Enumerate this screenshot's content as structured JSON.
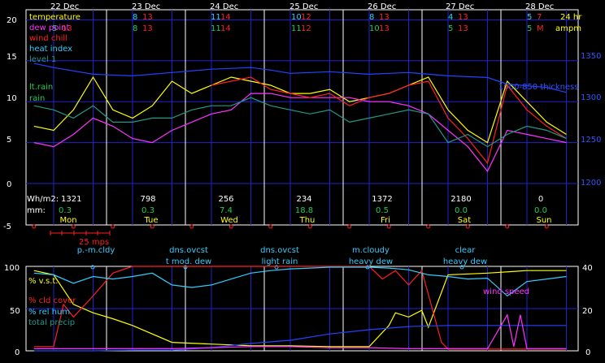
{
  "colors": {
    "background": "#000000",
    "grid": "#2222cc",
    "plot_border": "#ffffff",
    "day_divider": "#ffffff",
    "yellow": "#ffff00",
    "magenta": "#ff33ff",
    "red": "#ff2020",
    "cyan": "#33ccff",
    "green": "#22cc55",
    "teal": "#229988",
    "blue": "#2244ff",
    "tick_text": "#ffffff",
    "right_axis_text": "#3355ff"
  },
  "dates": [
    "22 Dec",
    "23 Dec",
    "24 Dec",
    "25 Dec",
    "26 Dec",
    "27 Dec",
    "28 Dec"
  ],
  "top_header": {
    "temp_row": [
      {
        "min": "",
        "max": ""
      },
      {
        "min": "8",
        "max": "13"
      },
      {
        "min": "11",
        "max": "14"
      },
      {
        "min": "10",
        "max": "12"
      },
      {
        "min": "8",
        "max": "13"
      },
      {
        "min": "4",
        "max": "13"
      },
      {
        "min": "5",
        "max": "7"
      }
    ],
    "dew_row": [
      {
        "min": "5",
        "max": "13"
      },
      {
        "min": "8",
        "max": "13"
      },
      {
        "min": "11",
        "max": "14"
      },
      {
        "min": "11",
        "max": "12"
      },
      {
        "min": "10",
        "max": "13"
      },
      {
        "min": "5",
        "max": "13"
      },
      {
        "min": "5",
        "max": "M"
      }
    ],
    "hr_label": "24 hr",
    "ampm_label": "ampm"
  },
  "top_legend": [
    "temperature",
    "dew point",
    "wind chill",
    "heat index",
    "level 1",
    "lt.rain",
    "rain"
  ],
  "thickness_label": "1000-850 thickness",
  "daily": {
    "labels": {
      "wh": "Wh/m2:",
      "mm": "mm:"
    },
    "wh": [
      "1321",
      "798",
      "256",
      "234",
      "1372",
      "2180",
      "0"
    ],
    "mm": [
      "0.3",
      "0.3",
      "7.4",
      "18.8",
      "0.5",
      "0.0",
      "0.0"
    ],
    "days": [
      "Mon",
      "Tue",
      "Wed",
      "Thu",
      "Fri",
      "Sat",
      "Sun"
    ]
  },
  "wind_scale_label": "25 mps",
  "sky_labels": [
    {
      "sky": "p.-m.cldy",
      "precip": ""
    },
    {
      "sky": "dns.ovcst",
      "precip": "t mod. dew"
    },
    {
      "sky": "dns.ovcst",
      "precip": "light rain"
    },
    {
      "sky": "m.cloudy",
      "precip": "heavy dew"
    },
    {
      "sky": "clear",
      "precip": "heavy dew"
    }
  ],
  "bottom_legend": [
    "% v.s.t.",
    "% cld cover",
    "% rel hum",
    "total precip"
  ],
  "wind_speed_label": "wind speed",
  "chart_data": [
    {
      "type": "line",
      "panel": "temperature",
      "x_unit": "hours since 22 Dec 00:00",
      "ylim": [
        -5,
        20
      ],
      "y_ticks": [
        -5,
        0,
        5,
        10,
        15,
        20
      ],
      "y2lim": [
        1150,
        1375
      ],
      "y2_ticks": [
        1200,
        1250,
        1300,
        1350
      ],
      "grid": true,
      "series": [
        {
          "name": "temperature",
          "color": "#ffff00",
          "axis": "left",
          "x": [
            -6,
            0,
            6,
            12,
            18,
            24,
            30,
            36,
            42,
            48,
            54,
            60,
            66,
            72,
            78,
            84,
            90,
            96,
            102,
            108,
            114,
            120,
            126,
            132,
            138,
            144,
            150,
            156
          ],
          "y": [
            7,
            6.5,
            9,
            13,
            9,
            8,
            9.5,
            12.5,
            11,
            12,
            13,
            12.5,
            12,
            11,
            11,
            11.5,
            10,
            10.5,
            11,
            12,
            13,
            9,
            6.5,
            5,
            12.5,
            10,
            7.5,
            6
          ]
        },
        {
          "name": "dew point",
          "color": "#ff33ff",
          "axis": "left",
          "x": [
            -6,
            0,
            6,
            12,
            18,
            24,
            30,
            36,
            42,
            48,
            54,
            60,
            66,
            72,
            78,
            84,
            90,
            96,
            102,
            108,
            114,
            120,
            126,
            132,
            138,
            144,
            150,
            156
          ],
          "y": [
            5,
            4.5,
            6,
            8,
            7,
            5.5,
            5,
            6.5,
            7.5,
            8.5,
            9,
            11,
            11,
            10.5,
            10.5,
            10.5,
            10.5,
            10,
            10,
            9.5,
            8.5,
            6.5,
            4.5,
            1.5,
            6.5,
            6,
            5.5,
            5
          ]
        },
        {
          "name": "wind chill",
          "color": "#ff2020",
          "axis": "left",
          "x": [
            48,
            54,
            60,
            66,
            72,
            78,
            84,
            90,
            96,
            102,
            108,
            114,
            120,
            126,
            132,
            138,
            144,
            150,
            156
          ],
          "y": [
            12,
            12.5,
            13,
            11.5,
            11,
            10.5,
            11,
            9.5,
            10.5,
            11,
            12,
            12.5,
            8,
            5.5,
            2.5,
            12,
            9,
            7,
            5.5
          ]
        },
        {
          "name": "level 1",
          "color": "#229988",
          "axis": "left",
          "x": [
            -6,
            0,
            6,
            12,
            18,
            24,
            30,
            36,
            42,
            48,
            54,
            60,
            66,
            72,
            78,
            84,
            90,
            96,
            102,
            108,
            114,
            120,
            126,
            132,
            138,
            144,
            150,
            156
          ],
          "y": [
            9.5,
            9,
            8,
            9.5,
            7.5,
            7.5,
            8,
            8,
            9,
            9.5,
            9.5,
            10.5,
            9.5,
            9,
            8.5,
            9,
            7.5,
            8,
            8.5,
            9,
            8.5,
            5,
            6,
            4.5,
            6,
            7,
            6.5,
            5.5
          ]
        },
        {
          "name": "1000-850 thickness",
          "color": "#2244ff",
          "axis": "right",
          "x": [
            -6,
            0,
            6,
            12,
            24,
            36,
            48,
            60,
            66,
            72,
            84,
            96,
            108,
            120,
            132,
            138,
            144,
            150,
            156
          ],
          "y": [
            1345,
            1340,
            1336,
            1332,
            1330,
            1334,
            1338,
            1340,
            1337,
            1333,
            1335,
            1332,
            1334,
            1330,
            1328,
            1320,
            1318,
            1316,
            1310
          ]
        }
      ]
    },
    {
      "type": "line",
      "panel": "cloud, humidity, precipitation",
      "x_unit": "hours since 22 Dec 00:00",
      "ylim": [
        0,
        100
      ],
      "y_ticks": [
        0,
        50,
        100
      ],
      "y2lim": [
        0,
        40
      ],
      "y2_ticks": [
        0,
        20,
        40
      ],
      "grid": true,
      "series": [
        {
          "name": "% v.s.t.",
          "color": "#ffff00",
          "axis": "left",
          "x": [
            -6,
            0,
            6,
            12,
            18,
            24,
            36,
            48,
            60,
            72,
            84,
            96,
            102,
            104,
            108,
            112,
            114,
            120,
            132,
            144,
            150,
            156
          ],
          "y": [
            95,
            90,
            55,
            45,
            38,
            30,
            10,
            8,
            6,
            6,
            5,
            5,
            30,
            45,
            40,
            48,
            28,
            90,
            92,
            95,
            95,
            95
          ]
        },
        {
          "name": "% cld cover",
          "color": "#ff2020",
          "axis": "left",
          "x": [
            -6,
            0,
            3,
            6,
            12,
            18,
            24,
            36,
            48,
            60,
            72,
            84,
            96,
            100,
            104,
            108,
            112,
            118,
            120,
            132,
            144,
            156
          ],
          "y": [
            5,
            5,
            55,
            40,
            65,
            92,
            100,
            100,
            100,
            100,
            100,
            100,
            100,
            85,
            95,
            78,
            95,
            10,
            2,
            2,
            2,
            2
          ]
        },
        {
          "name": "% rel hum",
          "color": "#33ccff",
          "axis": "left",
          "x": [
            -6,
            0,
            6,
            12,
            18,
            24,
            30,
            36,
            42,
            48,
            54,
            60,
            66,
            72,
            78,
            84,
            90,
            96,
            102,
            108,
            114,
            120,
            126,
            132,
            138,
            144,
            150,
            156
          ],
          "y": [
            92,
            90,
            80,
            88,
            85,
            88,
            92,
            78,
            75,
            78,
            85,
            92,
            95,
            97,
            98,
            99,
            99,
            99,
            98,
            96,
            90,
            88,
            85,
            86,
            65,
            82,
            85,
            88
          ]
        },
        {
          "name": "total precip",
          "color": "#2244ff",
          "axis": "right",
          "x": [
            -6,
            0,
            12,
            24,
            36,
            48,
            60,
            72,
            84,
            96,
            108,
            120,
            132,
            144,
            156
          ],
          "y": [
            0,
            0,
            0,
            0.3,
            0.3,
            1.5,
            3.5,
            5,
            8,
            10,
            11.5,
            12,
            12,
            12,
            12
          ]
        },
        {
          "name": "wind speed",
          "color": "#ff33ff",
          "axis": "right",
          "x": [
            -6,
            0,
            12,
            24,
            36,
            48,
            60,
            72,
            84,
            96,
            108,
            120,
            132,
            138,
            140,
            142,
            144,
            146,
            148,
            150,
            156
          ],
          "y": [
            1,
            1,
            1,
            1,
            1,
            1.5,
            2,
            2,
            1.5,
            1.5,
            1,
            1,
            1,
            17,
            2,
            17,
            1,
            1,
            1,
            1,
            1
          ]
        }
      ]
    }
  ]
}
